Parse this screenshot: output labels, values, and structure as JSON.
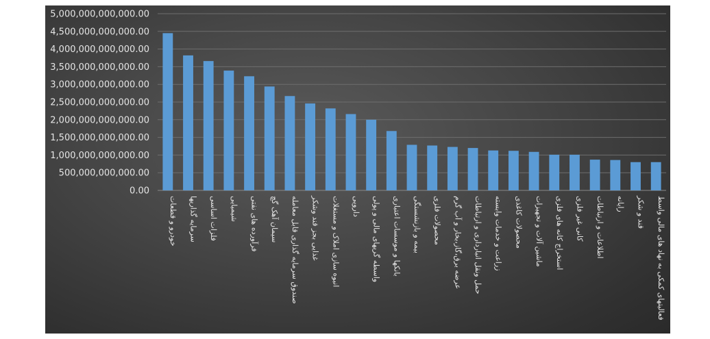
{
  "chart_data": {
    "type": "bar",
    "title": "",
    "xlabel": "",
    "ylabel": "",
    "ylim": [
      0,
      5000000000000
    ],
    "y_ticks": [
      "0.00",
      "500,000,000,000.00",
      "1,000,000,000,000.00",
      "1,500,000,000,000.00",
      "2,000,000,000,000.00",
      "2,500,000,000,000.00",
      "3,000,000,000,000.00",
      "3,500,000,000,000.00",
      "4,000,000,000,000.00",
      "4,500,000,000,000.00",
      "5,000,000,000,000.00"
    ],
    "grid": true,
    "legend": "none",
    "bar_color": "#5b9bd5",
    "categories": [
      "خودرو و قطعات",
      "سرمایه گذاریها",
      "فلزات اساسی",
      "شیمیایی",
      "فرآورده های نفتی",
      "سیمان آهک گچ",
      "صندوق سرمایه گذاری قابل معامله",
      "غذایی بجز قند وشکر",
      "انبوه سازی املاک و مستغلات",
      "دارویی",
      "واسطه گریهای مالی و پولی",
      "بانکها و موسسات اعتباری",
      "بیمه و بازنشستگی",
      "محصولات فلزی",
      "عرضه برق،گاز،بخار و آب گرم",
      "حمل ونقل انبارداری و ارتباطات",
      "زراعت و خدمات وابسته",
      "محصولات کاغذی",
      "ماشین آلات و تجهیزات",
      "استخراج کانه های فلزی",
      "کانی غیر فلزی",
      "اطلاعات و ارتباطات",
      "رایانه",
      "قند و شکر",
      "فعالیتهای کمکی به نهاد های مالی واسط"
    ],
    "values": [
      4450000000000,
      3820000000000,
      3660000000000,
      3390000000000,
      3230000000000,
      2940000000000,
      2670000000000,
      2460000000000,
      2320000000000,
      2160000000000,
      2000000000000,
      1680000000000,
      1290000000000,
      1270000000000,
      1230000000000,
      1200000000000,
      1130000000000,
      1120000000000,
      1090000000000,
      1010000000000,
      1010000000000,
      870000000000,
      860000000000,
      800000000000,
      800000000000
    ]
  }
}
